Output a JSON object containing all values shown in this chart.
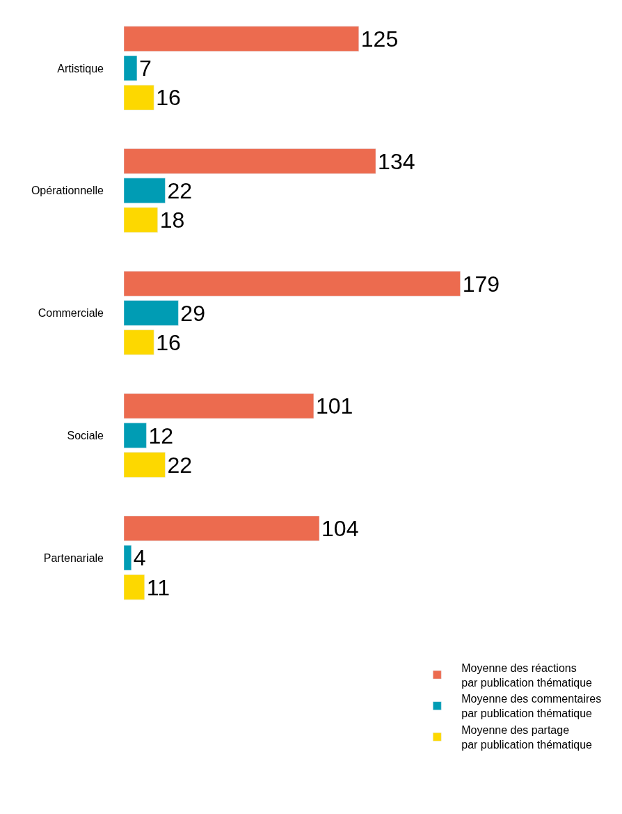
{
  "chart_data": {
    "type": "bar",
    "orientation": "horizontal",
    "categories": [
      "Artistique",
      "Opérationnelle",
      "Commerciale",
      "Sociale",
      "Partenariale"
    ],
    "series": [
      {
        "name": "Moyenne des réactions\npar publication thématique",
        "color": "#ec6b4f",
        "values": [
          125,
          134,
          179,
          101,
          104
        ]
      },
      {
        "name": "Moyenne des commentaires\npar publication thématique",
        "color": "#009cb4",
        "values": [
          7,
          22,
          29,
          12,
          4
        ]
      },
      {
        "name": "Moyenne des partage\npar publication thématique",
        "color": "#fdd800",
        "values": [
          16,
          18,
          16,
          22,
          11
        ]
      }
    ],
    "xlim": [
      0,
      265
    ],
    "data_labels": true,
    "legend": "bottom right",
    "tick_labels": "y"
  }
}
